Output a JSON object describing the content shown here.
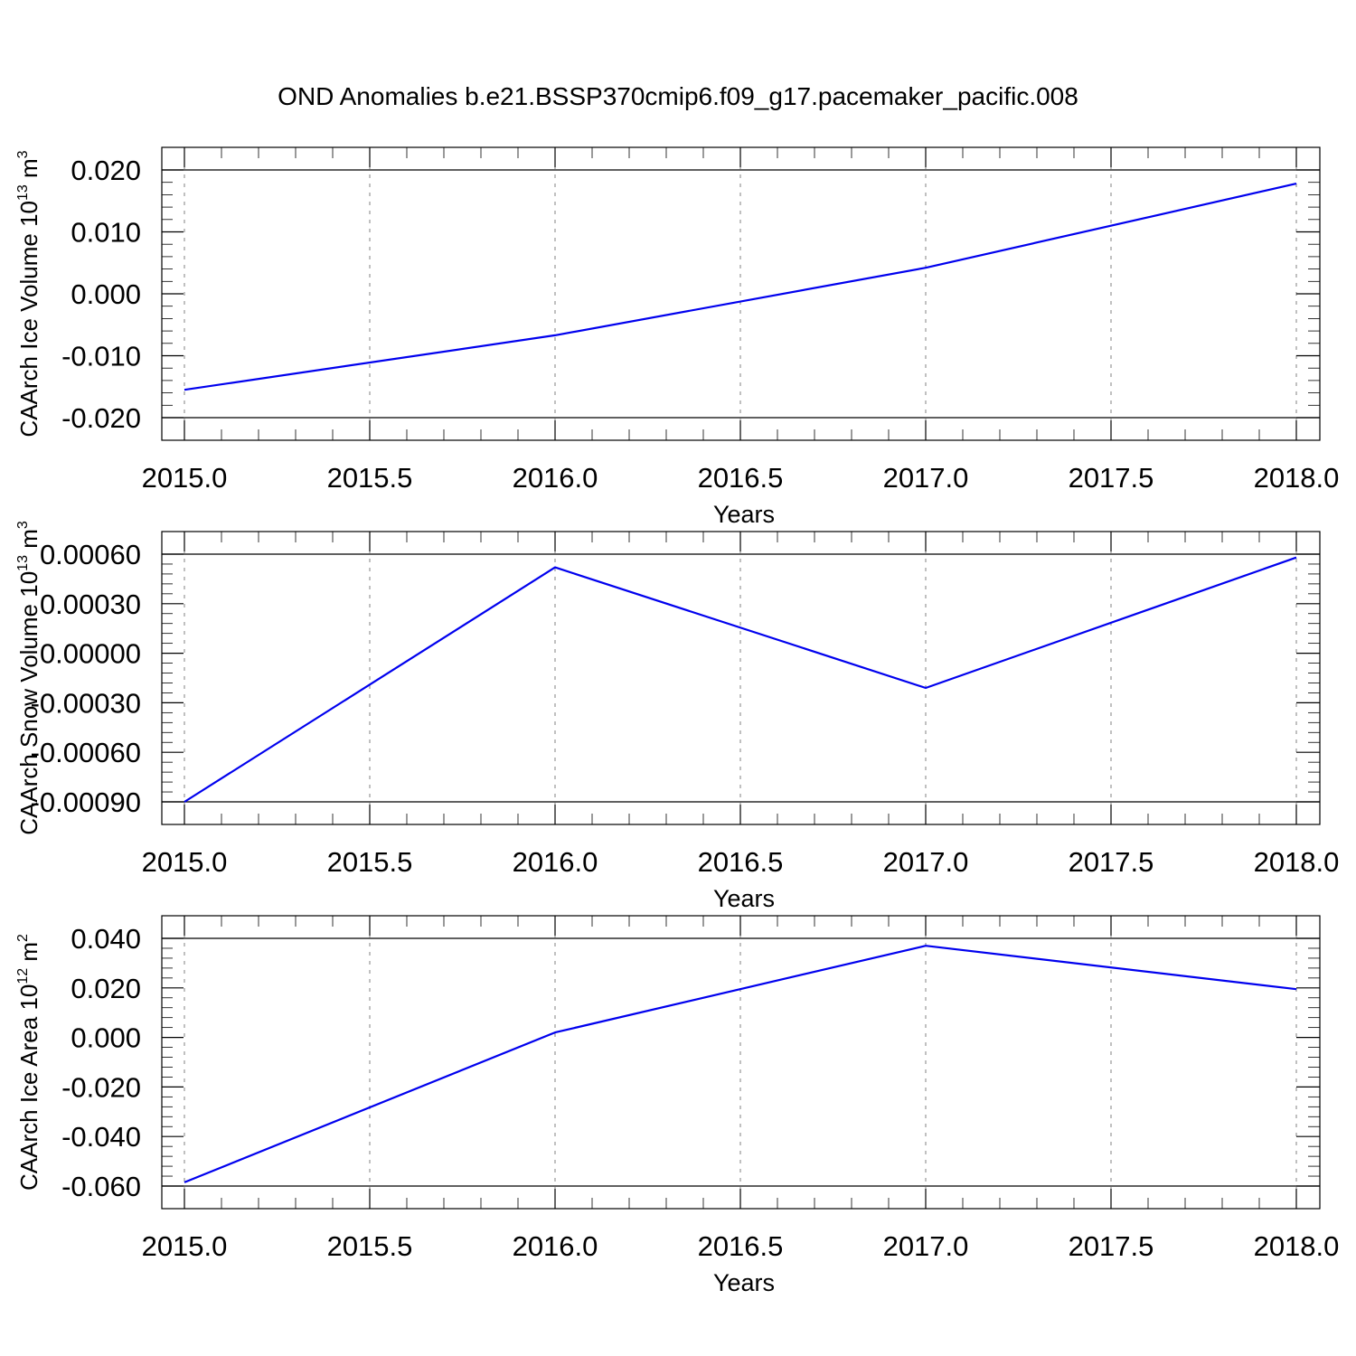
{
  "chart_data": {
    "title": "OND Anomalies b.e21.BSSP370cmip6.f09_g17.pacemaker_pacific.008",
    "panels": [
      {
        "type": "line",
        "name": "ice-volume",
        "ylabel": "CAArch Ice Volume 10",
        "ylabel_exponent": "13",
        "ylabel_unit": " m",
        "ylabel_unit_exponent": "3",
        "xlabel": "Years",
        "xlim": [
          2015.0,
          2018.0
        ],
        "ylim": [
          -0.02,
          0.02
        ],
        "xticks": [
          "2015.0",
          "2015.5",
          "2016.0",
          "2016.5",
          "2017.0",
          "2017.5",
          "2018.0"
        ],
        "yticks": [
          "0.020",
          "0.010",
          "0.000",
          "-0.010",
          "-0.020"
        ],
        "ytick_values": [
          0.02,
          0.01,
          0.0,
          -0.01,
          -0.02
        ],
        "y_minor_per_major": 5,
        "grid": "vertical dashed at major x ticks",
        "color": "#0000ee",
        "x": [
          2015.0,
          2016.0,
          2017.0,
          2018.0
        ],
        "y": [
          -0.0155,
          -0.0067,
          0.0042,
          0.0178
        ]
      },
      {
        "type": "line",
        "name": "snow-volume",
        "ylabel": "CAArch Snow Volume 10",
        "ylabel_exponent": "13",
        "ylabel_unit": " m",
        "ylabel_unit_exponent": "3",
        "xlabel": "Years",
        "xlim": [
          2015.0,
          2018.0
        ],
        "ylim": [
          -0.0009,
          0.0006
        ],
        "xticks": [
          "2015.0",
          "2015.5",
          "2016.0",
          "2016.5",
          "2017.0",
          "2017.5",
          "2018.0"
        ],
        "yticks": [
          "0.00060",
          "0.00030",
          "0.00000",
          "-0.00030",
          "-0.00060",
          "-0.00090"
        ],
        "ytick_values": [
          0.0006,
          0.0003,
          0.0,
          -0.0003,
          -0.0006,
          -0.0009
        ],
        "y_minor_per_major": 5,
        "grid": "vertical dashed at major x ticks",
        "color": "#0000ee",
        "x": [
          2015.0,
          2016.0,
          2017.0,
          2018.0
        ],
        "y": [
          -0.0009,
          0.00052,
          -0.00021,
          0.00058
        ]
      },
      {
        "type": "line",
        "name": "ice-area",
        "ylabel": "CAArch Ice Area 10",
        "ylabel_exponent": "12",
        "ylabel_unit": " m",
        "ylabel_unit_exponent": "2",
        "xlabel": "Years",
        "xlim": [
          2015.0,
          2018.0
        ],
        "ylim": [
          -0.06,
          0.04
        ],
        "xticks": [
          "2015.0",
          "2015.5",
          "2016.0",
          "2016.5",
          "2017.0",
          "2017.5",
          "2018.0"
        ],
        "yticks": [
          "0.040",
          "0.020",
          "0.000",
          "-0.020",
          "-0.040",
          "-0.060"
        ],
        "ytick_values": [
          0.04,
          0.02,
          0.0,
          -0.02,
          -0.04,
          -0.06
        ],
        "y_minor_per_major": 5,
        "grid": "vertical dashed at major x ticks",
        "color": "#0000ee",
        "x": [
          2015.0,
          2016.0,
          2017.0,
          2018.0
        ],
        "y": [
          -0.0585,
          0.002,
          0.037,
          0.0195
        ]
      }
    ]
  }
}
